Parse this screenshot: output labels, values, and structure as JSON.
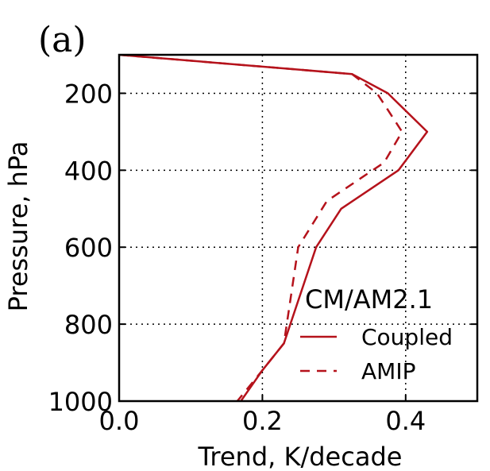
{
  "chart_data": {
    "type": "line",
    "panel_label": "(a)",
    "title": "",
    "xlabel": "Trend, K/decade",
    "ylabel": "Pressure, hPa",
    "xlim": [
      0.0,
      0.5
    ],
    "ylim": [
      1000,
      100
    ],
    "y_inverted": true,
    "grid": true,
    "x_ticks": [
      0.0,
      0.2,
      0.4
    ],
    "x_tick_labels": [
      "0.0",
      "0.2",
      "0.4"
    ],
    "y_ticks": [
      200,
      400,
      600,
      800,
      1000
    ],
    "y_tick_labels": [
      "200",
      "400",
      "600",
      "800",
      "1000"
    ],
    "legend": {
      "title": "CM/AM2.1",
      "placement": "lower-right",
      "entries": [
        "Coupled",
        "AMIP"
      ]
    },
    "color": "#b5121b",
    "series": [
      {
        "name": "Coupled",
        "style": "solid",
        "x": [
          0.0,
          0.325,
          0.375,
          0.43,
          0.39,
          0.31,
          0.275,
          0.23,
          0.2,
          0.17
        ],
        "y": [
          100,
          150,
          200,
          300,
          400,
          500,
          600,
          850,
          920,
          1000
        ]
      },
      {
        "name": "AMIP",
        "style": "dashed",
        "x": [
          0.0,
          0.325,
          0.36,
          0.395,
          0.37,
          0.29,
          0.25,
          0.23,
          0.2,
          0.165
        ],
        "y": [
          100,
          150,
          200,
          300,
          380,
          480,
          600,
          850,
          920,
          1000
        ]
      }
    ]
  }
}
